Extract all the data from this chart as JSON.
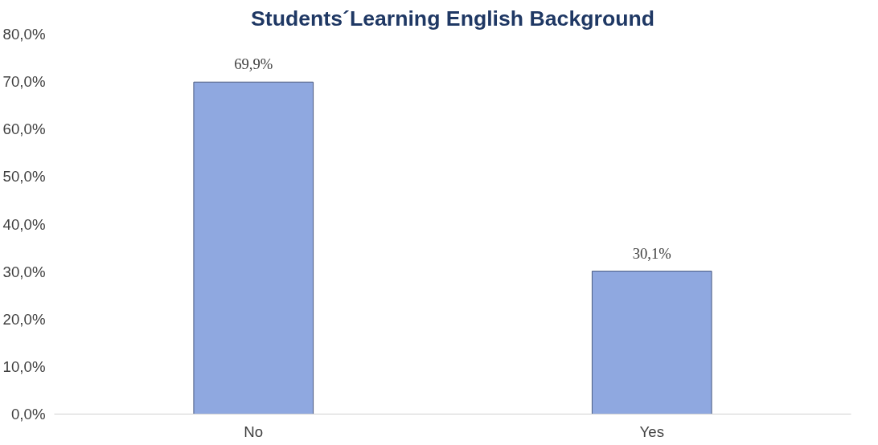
{
  "chart_data": {
    "type": "bar",
    "title": "Students´Learning English Background",
    "categories": [
      "No",
      "Yes"
    ],
    "values": [
      69.9,
      30.1
    ],
    "value_labels": [
      "69,9%",
      "30,1%"
    ],
    "color": "#8fa8e0",
    "ylim": [
      0,
      80
    ],
    "yticks": [
      {
        "value": 0,
        "label": "0,0%"
      },
      {
        "value": 10,
        "label": "10,0%"
      },
      {
        "value": 20,
        "label": "20,0%"
      },
      {
        "value": 30,
        "label": "30,0%"
      },
      {
        "value": 40,
        "label": "40,0%"
      },
      {
        "value": 50,
        "label": "50,0%"
      },
      {
        "value": 60,
        "label": "60,0%"
      },
      {
        "value": 70,
        "label": "70,0%"
      },
      {
        "value": 80,
        "label": "80,0%"
      }
    ],
    "grid": false
  }
}
